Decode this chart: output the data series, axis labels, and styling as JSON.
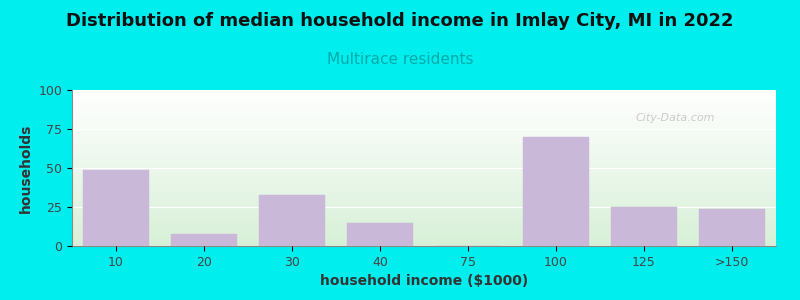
{
  "title": "Distribution of median household income in Imlay City, MI in 2022",
  "subtitle": "Multirace residents",
  "xlabel": "household income ($1000)",
  "ylabel": "households",
  "categories": [
    "10",
    "20",
    "30",
    "40",
    "75",
    "100",
    "125",
    ">150"
  ],
  "values": [
    49,
    8,
    33,
    15,
    0,
    70,
    25,
    24
  ],
  "bar_color": "#C9B8D8",
  "bar_edgecolor": "#C9B8D8",
  "background_color": "#00EEEE",
  "grad_top": "#f5fff5",
  "grad_bottom": "#e8f5e8",
  "ylim": [
    0,
    100
  ],
  "yticks": [
    0,
    25,
    50,
    75,
    100
  ],
  "title_fontsize": 13,
  "subtitle_fontsize": 11,
  "subtitle_color": "#00AAAA",
  "axis_label_fontsize": 10,
  "tick_fontsize": 9,
  "watermark": "City-Data.com",
  "watermark_color": "#bbbbbb",
  "bar_width": 0.75,
  "title_color": "#111111"
}
